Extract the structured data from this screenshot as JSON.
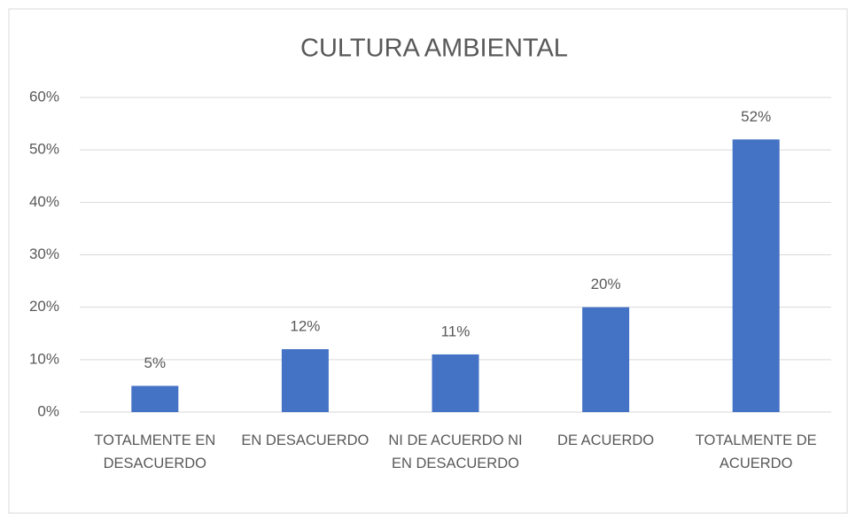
{
  "chart_data": {
    "type": "bar",
    "title": "CULTURA AMBIENTAL",
    "categories": [
      "TOTALMENTE EN DESACUERDO",
      "EN DESACUERDO",
      "NI DE ACUERDO NI EN DESACUERDO",
      "DE ACUERDO",
      "TOTALMENTE DE ACUERDO"
    ],
    "values": [
      5,
      12,
      11,
      20,
      52
    ],
    "value_labels": [
      "5%",
      "12%",
      "11%",
      "20%",
      "52%"
    ],
    "color": "#4472c4",
    "ylim": [
      0,
      60
    ],
    "yticks": [
      {
        "value": 0,
        "label": "0%"
      },
      {
        "value": 10,
        "label": "10%"
      },
      {
        "value": 20,
        "label": "20%"
      },
      {
        "value": 30,
        "label": "30%"
      },
      {
        "value": 40,
        "label": "40%"
      },
      {
        "value": 50,
        "label": "50%"
      },
      {
        "value": 60,
        "label": "60%"
      }
    ],
    "grid": true
  }
}
